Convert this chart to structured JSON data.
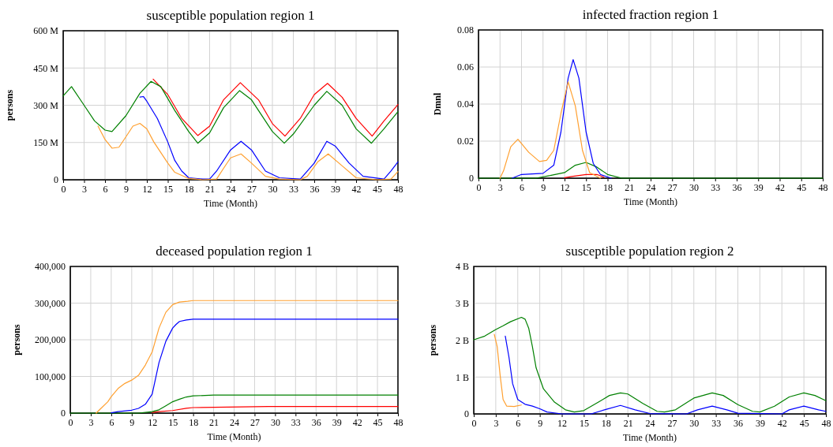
{
  "chart_data": [
    {
      "type": "line",
      "title": "susceptible population region 1",
      "xlabel": "Time (Month)",
      "ylabel": "persons",
      "xlim": [
        0,
        48
      ],
      "xticks": [
        0,
        3,
        6,
        9,
        12,
        15,
        18,
        21,
        24,
        27,
        30,
        33,
        36,
        39,
        42,
        45,
        48
      ],
      "ylim": [
        0,
        600000000
      ],
      "yticks": [
        {
          "value": 0,
          "label": "0"
        },
        {
          "value": 150000000,
          "label": "150 M"
        },
        {
          "value": 300000000,
          "label": "300 M"
        },
        {
          "value": 450000000,
          "label": "450 M"
        },
        {
          "value": 600000000,
          "label": "600 M"
        }
      ],
      "grid": true,
      "line_style": "solid",
      "series": [
        {
          "color": "#ff0000",
          "x": [
            12.9,
            15,
            17,
            19.3,
            21,
            23,
            25.4,
            28,
            30,
            31.8,
            34,
            36,
            37.9,
            40,
            42,
            44.3,
            46,
            48
          ],
          "values": [
            405000000,
            343000000,
            247000000,
            178000000,
            216000000,
            322000000,
            391000000,
            322000000,
            226000000,
            176000000,
            247000000,
            343000000,
            388000000,
            332000000,
            247000000,
            176000000,
            237000000,
            303000000
          ]
        },
        {
          "color": "#008000",
          "x": [
            0,
            1.2,
            3,
            4.5,
            6,
            7,
            9,
            11,
            12.6,
            14,
            16,
            18,
            19.3,
            21,
            23,
            25.3,
            27,
            30,
            31.7,
            33,
            36,
            37.8,
            40,
            42,
            44.2,
            46,
            48
          ],
          "values": [
            338000000,
            375000000,
            300000000,
            237000000,
            200000000,
            194000000,
            258000000,
            348000000,
            396000000,
            375000000,
            279000000,
            194000000,
            147000000,
            189000000,
            290000000,
            359000000,
            322000000,
            194000000,
            147000000,
            184000000,
            300000000,
            356000000,
            300000000,
            205000000,
            147000000,
            205000000,
            274000000
          ]
        },
        {
          "color": "#0000ff",
          "x": [
            11,
            11.5,
            12,
            13.5,
            15,
            16,
            17,
            18,
            20,
            21,
            22,
            24,
            25.5,
            27,
            29,
            31,
            34,
            36,
            37.8,
            39,
            41,
            43,
            46,
            47,
            48
          ],
          "values": [
            333000000,
            335000000,
            316000000,
            247000000,
            152000000,
            78000000,
            35000000,
            8000000,
            3000000,
            3000000,
            35000000,
            120000000,
            155000000,
            120000000,
            35000000,
            8000000,
            3000000,
            67000000,
            155000000,
            136000000,
            67000000,
            14000000,
            3000000,
            35000000,
            72000000
          ]
        },
        {
          "color": "#ffa030",
          "x": [
            5,
            6,
            7,
            8,
            9,
            10,
            11,
            12,
            13,
            15,
            16,
            18,
            20,
            22,
            23,
            24,
            25.5,
            27,
            29,
            31,
            34,
            35,
            36.5,
            38,
            40,
            42,
            45,
            47,
            48
          ],
          "values": [
            216000000,
            162000000,
            127000000,
            131000000,
            173000000,
            216000000,
            227000000,
            205000000,
            152000000,
            67000000,
            30000000,
            5000000,
            0,
            3000000,
            46000000,
            88000000,
            104000000,
            67000000,
            14000000,
            3000000,
            0,
            14000000,
            72000000,
            104000000,
            56000000,
            8000000,
            0,
            3000000,
            33000000
          ]
        }
      ]
    },
    {
      "type": "line",
      "title": "infected fraction region 1",
      "xlabel": "Time (Month)",
      "ylabel": "Dmnl",
      "xlim": [
        0,
        48
      ],
      "xticks": [
        0,
        3,
        6,
        9,
        12,
        15,
        18,
        21,
        24,
        27,
        30,
        33,
        36,
        39,
        42,
        45,
        48
      ],
      "ylim": [
        0,
        0.08
      ],
      "yticks": [
        0,
        0.02,
        0.04,
        0.06,
        0.08
      ],
      "grid": true,
      "line_style": "solid",
      "series": [
        {
          "color": "#ff0000",
          "x": [
            12,
            13,
            15,
            16.5,
            17.5
          ],
          "values": [
            0.0003,
            0.0009,
            0.002,
            0.002,
            0.0005
          ]
        },
        {
          "color": "#008000",
          "x": [
            0,
            8,
            10,
            12,
            13.5,
            15,
            16.5,
            18,
            20,
            48
          ],
          "values": [
            0,
            0,
            0.0014,
            0.003,
            0.007,
            0.0085,
            0.006,
            0.002,
            0,
            0
          ]
        },
        {
          "color": "#0000ff",
          "x": [
            4.7,
            6,
            9,
            10.5,
            11.5,
            12.5,
            13.2,
            14,
            15,
            16,
            17,
            18.5
          ],
          "values": [
            0,
            0.002,
            0.0026,
            0.007,
            0.025,
            0.054,
            0.064,
            0.054,
            0.025,
            0.008,
            0.002,
            0
          ]
        },
        {
          "color": "#ffa030",
          "x": [
            3,
            3.5,
            4.5,
            5.5,
            7,
            8.5,
            9.5,
            10.5,
            11.5,
            12.5,
            13.5,
            14.5,
            15.5,
            17
          ],
          "values": [
            0,
            0.004,
            0.017,
            0.021,
            0.014,
            0.009,
            0.0096,
            0.015,
            0.035,
            0.052,
            0.039,
            0.015,
            0.003,
            0
          ]
        }
      ]
    },
    {
      "type": "line",
      "title": "deceased population region 1",
      "xlabel": "Time (Month)",
      "ylabel": "persons",
      "xlim": [
        0,
        48
      ],
      "xticks": [
        0,
        3,
        6,
        9,
        12,
        15,
        18,
        21,
        24,
        27,
        30,
        33,
        36,
        39,
        42,
        45,
        48
      ],
      "ylim": [
        0,
        400000
      ],
      "yticks": [
        {
          "value": 0,
          "label": "0"
        },
        {
          "value": 100000,
          "label": "100,000"
        },
        {
          "value": 200000,
          "label": "200,000"
        },
        {
          "value": 300000,
          "label": "300,000"
        },
        {
          "value": 400000,
          "label": "400,000"
        }
      ],
      "grid": true,
      "line_style": "solid",
      "series": [
        {
          "color": "#ff0000",
          "x": [
            12,
            13,
            15,
            17,
            18,
            29,
            48
          ],
          "values": [
            2000,
            4000,
            7000,
            13000,
            15000,
            18000,
            18000
          ]
        },
        {
          "color": "#008000",
          "x": [
            0,
            10,
            12,
            13,
            14,
            15,
            16,
            17,
            18,
            21,
            48
          ],
          "values": [
            0,
            0,
            4000,
            9000,
            20000,
            31000,
            38000,
            44000,
            47000,
            49000,
            49000
          ]
        },
        {
          "color": "#0000ff",
          "x": [
            6,
            7,
            9,
            10,
            11,
            12,
            13,
            14,
            15,
            15.5,
            16,
            17,
            18,
            48
          ],
          "values": [
            1000,
            4000,
            8000,
            13000,
            24000,
            52000,
            138000,
            196000,
            232000,
            242000,
            250000,
            254000,
            256000,
            256000
          ]
        },
        {
          "color": "#ffa030",
          "x": [
            3.8,
            4.5,
            5.5,
            6,
            7,
            8,
            9,
            10,
            11,
            12,
            13,
            14,
            15,
            16,
            17.2,
            18,
            48
          ],
          "values": [
            0,
            13000,
            31000,
            45000,
            67000,
            81000,
            90000,
            103000,
            131000,
            167000,
            232000,
            275000,
            296000,
            303000,
            305000,
            307000,
            307000
          ]
        }
      ]
    },
    {
      "type": "line",
      "title": "susceptible population region 2",
      "xlabel": "Time (Month)",
      "ylabel": "persons",
      "xlim": [
        0,
        48
      ],
      "xticks": [
        0,
        3,
        6,
        9,
        12,
        15,
        18,
        21,
        24,
        27,
        30,
        33,
        36,
        39,
        42,
        45,
        48
      ],
      "ylim": [
        0,
        4000000000
      ],
      "yticks": [
        {
          "value": 0,
          "label": "0"
        },
        {
          "value": 1000000000,
          "label": "1 B"
        },
        {
          "value": 2000000000,
          "label": "2 B"
        },
        {
          "value": 3000000000,
          "label": "3 B"
        },
        {
          "value": 4000000000,
          "label": "4 B"
        }
      ],
      "grid": true,
      "line_style": "solid",
      "series": [
        {
          "color": "#008000",
          "x": [
            0,
            1.5,
            3,
            4,
            5,
            6.5,
            7,
            7.5,
            8,
            8.5,
            9.5,
            11,
            12.5,
            13.7,
            15,
            17,
            18.5,
            20,
            21,
            23,
            25,
            26,
            27.5,
            30,
            32.5,
            34,
            36,
            38,
            39,
            41,
            43,
            45,
            46.5,
            48
          ],
          "values": [
            2010000000,
            2110000000,
            2290000000,
            2390000000,
            2500000000,
            2620000000,
            2570000000,
            2320000000,
            1820000000,
            1250000000,
            680000000,
            320000000,
            110000000,
            50000000,
            90000000,
            320000000,
            500000000,
            570000000,
            540000000,
            290000000,
            70000000,
            50000000,
            110000000,
            430000000,
            570000000,
            500000000,
            250000000,
            70000000,
            50000000,
            210000000,
            460000000,
            570000000,
            500000000,
            360000000
          ]
        },
        {
          "color": "#0000ff",
          "x": [
            4.3,
            4.8,
            5.3,
            6,
            7,
            8,
            9,
            10,
            12,
            16,
            18,
            20,
            22,
            24,
            29,
            30.5,
            32.5,
            34.5,
            36,
            42,
            43,
            45,
            47,
            48
          ],
          "values": [
            2110000000,
            1540000000,
            820000000,
            390000000,
            260000000,
            210000000,
            140000000,
            50000000,
            0,
            0,
            120000000,
            230000000,
            110000000,
            10000000,
            0,
            110000000,
            210000000,
            110000000,
            20000000,
            0,
            110000000,
            210000000,
            110000000,
            70000000
          ]
        },
        {
          "color": "#ffa030",
          "x": [
            2.8,
            3.2,
            3.6,
            4,
            4.5,
            5.5,
            6.5
          ],
          "values": [
            2160000000,
            1820000000,
            1040000000,
            390000000,
            210000000,
            200000000,
            240000000
          ]
        }
      ]
    }
  ]
}
